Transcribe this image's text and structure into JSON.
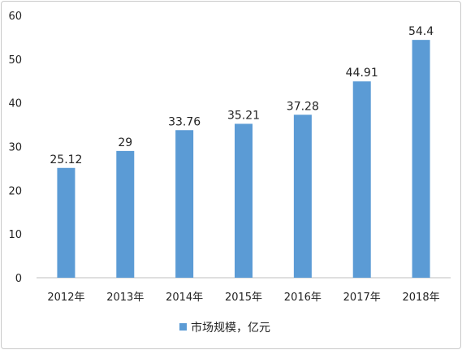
{
  "chart_data": {
    "type": "bar",
    "categories": [
      "2012年",
      "2013年",
      "2014年",
      "2015年",
      "2016年",
      "2017年",
      "2018年"
    ],
    "series": [
      {
        "name": "市场规模，亿元",
        "values": [
          25.12,
          29,
          33.76,
          35.21,
          37.28,
          44.91,
          54.4
        ],
        "labels": [
          "25.12",
          "29",
          "33.76",
          "35.21",
          "37.28",
          "44.91",
          "54.4"
        ],
        "color": "#5b9bd5"
      }
    ],
    "ylim": [
      0,
      60
    ],
    "yticks": [
      "0",
      "10",
      "20",
      "30",
      "40",
      "50",
      "60"
    ],
    "grid": false,
    "legend": "bottom"
  }
}
